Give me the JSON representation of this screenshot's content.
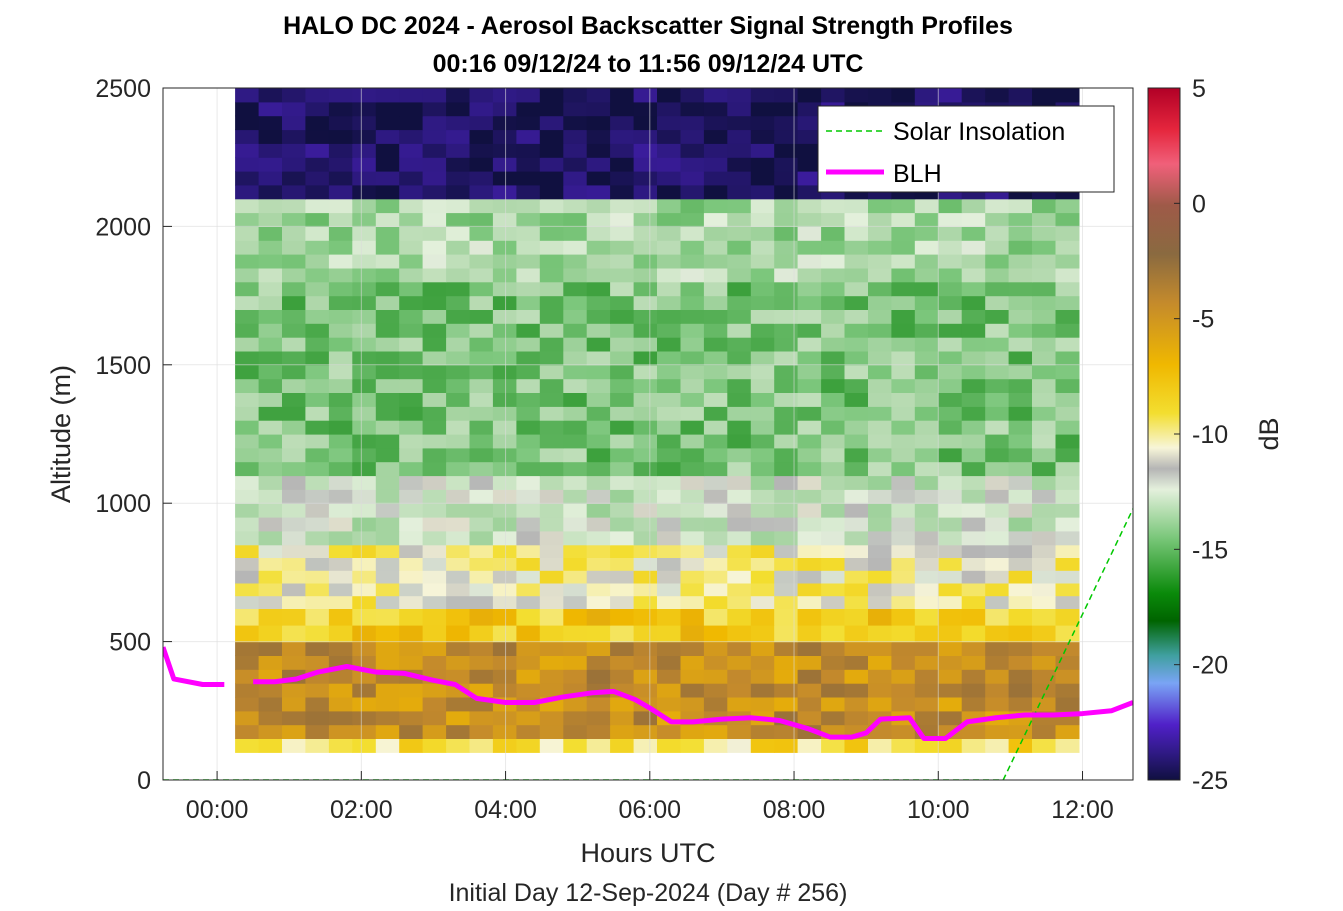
{
  "chart_data": {
    "type": "heatmap",
    "title": "HALO DC 2024 - Aerosol Backscatter Signal Strength Profiles",
    "subtitle": "00:16 09/12/24 to 11:56 09/12/24  UTC",
    "xlabel": "Hours UTC",
    "ylabel": "Altitude (m)",
    "footer": "Initial Day 12-Sep-2024 (Day # 256)",
    "xlim": [
      -0.75,
      12.7
    ],
    "ylim": [
      0,
      2500
    ],
    "x_ticks": [
      0,
      2,
      4,
      6,
      8,
      10,
      12
    ],
    "x_tick_labels": [
      "00:00",
      "02:00",
      "04:00",
      "06:00",
      "08:00",
      "10:00",
      "12:00"
    ],
    "y_ticks": [
      0,
      500,
      1000,
      1500,
      2000,
      2500
    ],
    "y_tick_labels": [
      "0",
      "500",
      "1000",
      "1500",
      "2000",
      "2500"
    ],
    "grid": true,
    "colorbar": {
      "label": "dB",
      "range": [
        -25,
        5
      ],
      "ticks": [
        5,
        0,
        -5,
        -10,
        -15,
        -20,
        -25
      ],
      "tick_labels": [
        "5",
        "0",
        "-5",
        "-10",
        "-15",
        "-20",
        "-25"
      ]
    },
    "heatmap_extent": {
      "x_start": 0.25,
      "x_end": 11.95,
      "y_start": 100,
      "y_end": 2500
    },
    "heatmap_bands_db": [
      {
        "y_from": 100,
        "y_to": 150,
        "db": -8
      },
      {
        "y_from": 150,
        "y_to": 500,
        "db": -4
      },
      {
        "y_from": 500,
        "y_to": 620,
        "db": -7
      },
      {
        "y_from": 620,
        "y_to": 850,
        "db": -9
      },
      {
        "y_from": 850,
        "y_to": 1100,
        "db": -11
      },
      {
        "y_from": 1100,
        "y_to": 1800,
        "db": -13
      },
      {
        "y_from": 1800,
        "y_to": 2100,
        "db": -12
      },
      {
        "y_from": 2100,
        "y_to": 2500,
        "db": -24
      }
    ],
    "series": [
      {
        "name": "Solar Insolation",
        "style": "dashed",
        "color": "#00c800",
        "x": [
          -0.75,
          10.9,
          12.7
        ],
        "y": [
          0,
          0,
          980
        ]
      },
      {
        "name": "BLH",
        "style": "solid",
        "color": "#ff00ff",
        "segments": [
          {
            "x": [
              -0.75,
              -0.6,
              -0.2,
              0.1
            ],
            "y": [
              480,
              365,
              345,
              345
            ]
          },
          {
            "x": [
              0.5,
              0.8,
              1.1,
              1.4,
              1.8,
              2.2,
              2.6,
              3.0,
              3.3,
              3.6,
              4.0,
              4.4,
              4.8,
              5.2,
              5.5,
              5.8,
              6.0,
              6.3,
              6.6,
              7.0,
              7.4,
              7.8,
              8.2,
              8.5,
              8.8,
              9.0,
              9.2,
              9.6,
              9.8,
              10.1,
              10.4,
              10.8,
              11.2,
              11.6,
              12.0,
              12.4,
              12.7
            ]
          }
        ]
      }
    ],
    "blh_values": [
      355,
      355,
      365,
      390,
      410,
      390,
      385,
      360,
      345,
      295,
      280,
      280,
      300,
      315,
      320,
      290,
      260,
      210,
      210,
      220,
      225,
      215,
      185,
      155,
      155,
      170,
      220,
      225,
      150,
      150,
      210,
      225,
      235,
      235,
      240,
      250,
      280
    ],
    "legend": {
      "placement": "top-right",
      "entries": [
        "Solar Insolation",
        "BLH"
      ]
    }
  }
}
